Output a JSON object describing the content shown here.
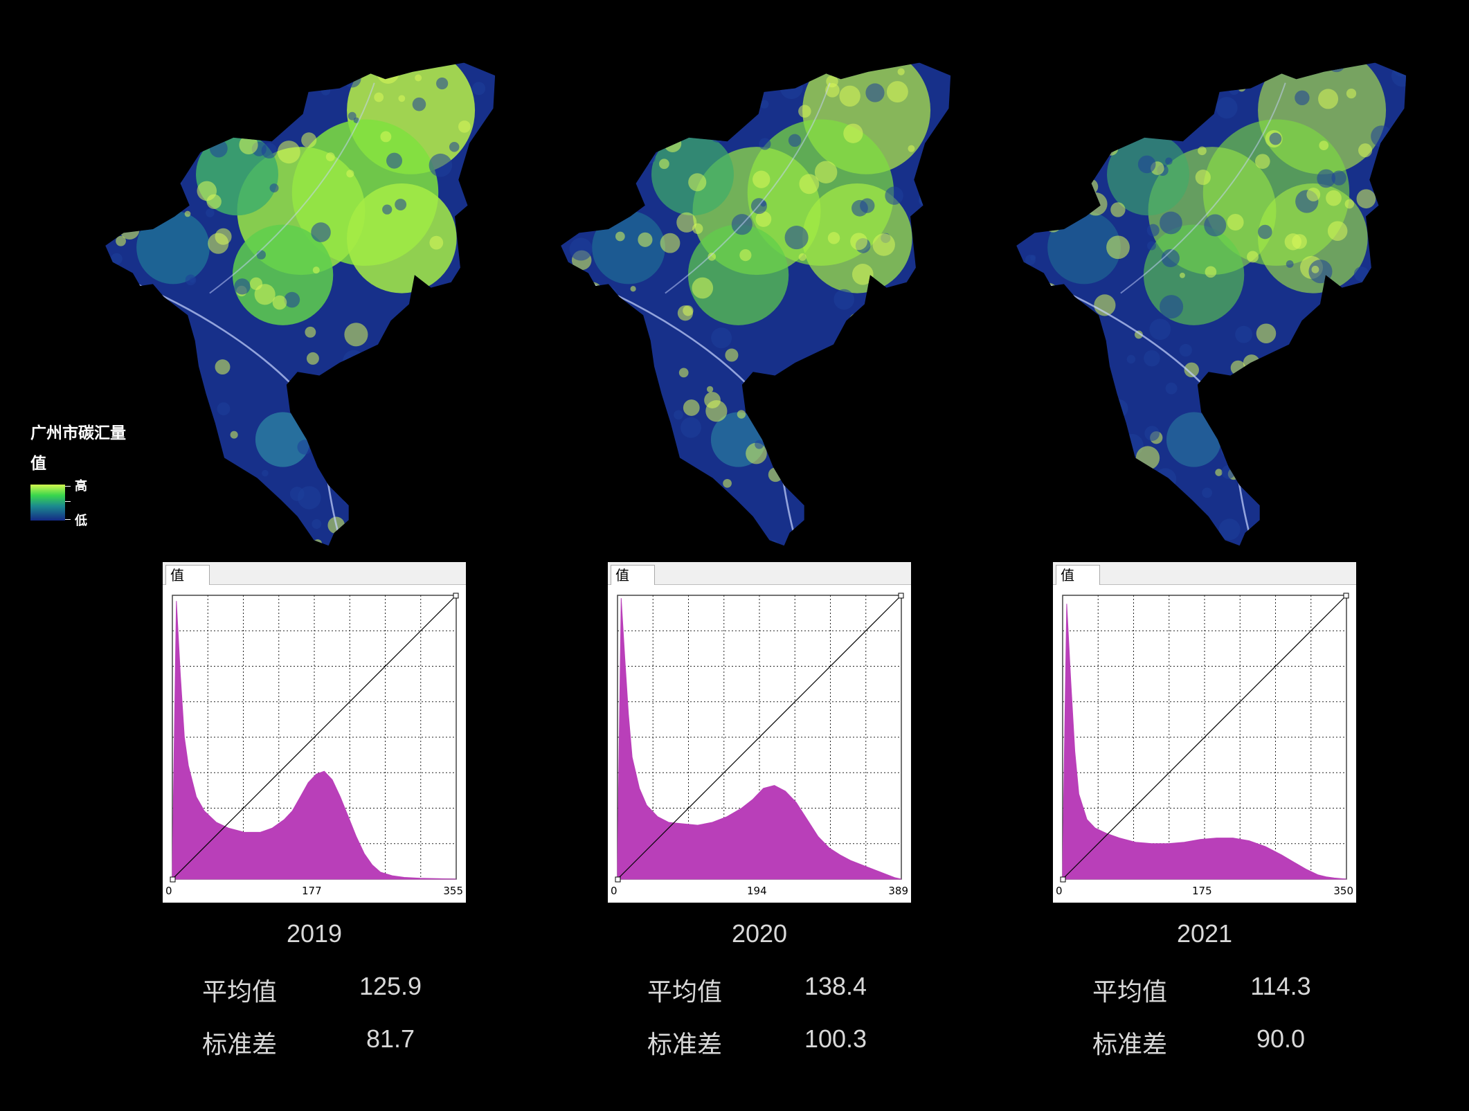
{
  "legend": {
    "title": "广州市碳汇量",
    "subtitle": "值",
    "high": "高",
    "low": "低"
  },
  "panels": [
    {
      "year": "2019",
      "tab": "值",
      "mean_label": "平均值",
      "mean": "125.9",
      "std_label": "标准差",
      "std": "81.7"
    },
    {
      "year": "2020",
      "tab": "值",
      "mean_label": "平均值",
      "mean": "138.4",
      "std_label": "标准差",
      "std": "100.3"
    },
    {
      "year": "2021",
      "tab": "值",
      "mean_label": "平均值",
      "mean": "114.3",
      "std_label": "标准差",
      "std": "90.0"
    }
  ],
  "chart_data": [
    {
      "type": "area",
      "tick_labels": [
        "0",
        "177",
        "355"
      ],
      "xlim": [
        0,
        355
      ],
      "x": [
        0,
        5,
        10,
        15,
        20,
        30,
        40,
        55,
        70,
        90,
        110,
        125,
        140,
        150,
        160,
        170,
        180,
        190,
        200,
        210,
        220,
        230,
        240,
        250,
        260,
        275,
        290,
        310,
        330,
        355
      ],
      "y": [
        0.05,
        0.98,
        0.72,
        0.5,
        0.4,
        0.29,
        0.24,
        0.2,
        0.18,
        0.165,
        0.165,
        0.18,
        0.21,
        0.24,
        0.29,
        0.34,
        0.37,
        0.38,
        0.35,
        0.29,
        0.22,
        0.15,
        0.09,
        0.05,
        0.025,
        0.012,
        0.006,
        0.003,
        0.002,
        0.0
      ],
      "fill_color": "#b93fb9",
      "grid": true,
      "diagonal_line": true
    },
    {
      "type": "area",
      "tick_labels": [
        "0",
        "194",
        "389"
      ],
      "xlim": [
        0,
        389
      ],
      "x": [
        0,
        5,
        10,
        15,
        20,
        30,
        40,
        55,
        70,
        90,
        110,
        130,
        150,
        170,
        185,
        200,
        215,
        230,
        245,
        260,
        275,
        290,
        305,
        320,
        340,
        355,
        370,
        380,
        389
      ],
      "y": [
        0.05,
        0.99,
        0.78,
        0.58,
        0.43,
        0.32,
        0.26,
        0.22,
        0.2,
        0.195,
        0.19,
        0.2,
        0.22,
        0.25,
        0.28,
        0.32,
        0.33,
        0.31,
        0.27,
        0.21,
        0.15,
        0.11,
        0.085,
        0.065,
        0.045,
        0.03,
        0.015,
        0.005,
        0.0
      ],
      "fill_color": "#b93fb9",
      "grid": true,
      "diagonal_line": true
    },
    {
      "type": "area",
      "tick_labels": [
        "0",
        "175",
        "350"
      ],
      "xlim": [
        0,
        350
      ],
      "x": [
        0,
        5,
        10,
        15,
        20,
        30,
        40,
        55,
        70,
        90,
        110,
        130,
        150,
        170,
        190,
        210,
        230,
        250,
        270,
        285,
        300,
        315,
        325,
        335,
        350
      ],
      "y": [
        0.05,
        0.97,
        0.7,
        0.45,
        0.3,
        0.21,
        0.18,
        0.16,
        0.145,
        0.13,
        0.125,
        0.125,
        0.13,
        0.14,
        0.145,
        0.145,
        0.135,
        0.115,
        0.085,
        0.06,
        0.035,
        0.015,
        0.008,
        0.004,
        0.0
      ],
      "fill_color": "#b93fb9",
      "grid": true,
      "diagonal_line": true
    }
  ],
  "colors": {
    "ramp_high": "#d2f74e",
    "ramp_mid": "#39d64d",
    "ramp_low": "#142a86",
    "background": "#000000"
  }
}
